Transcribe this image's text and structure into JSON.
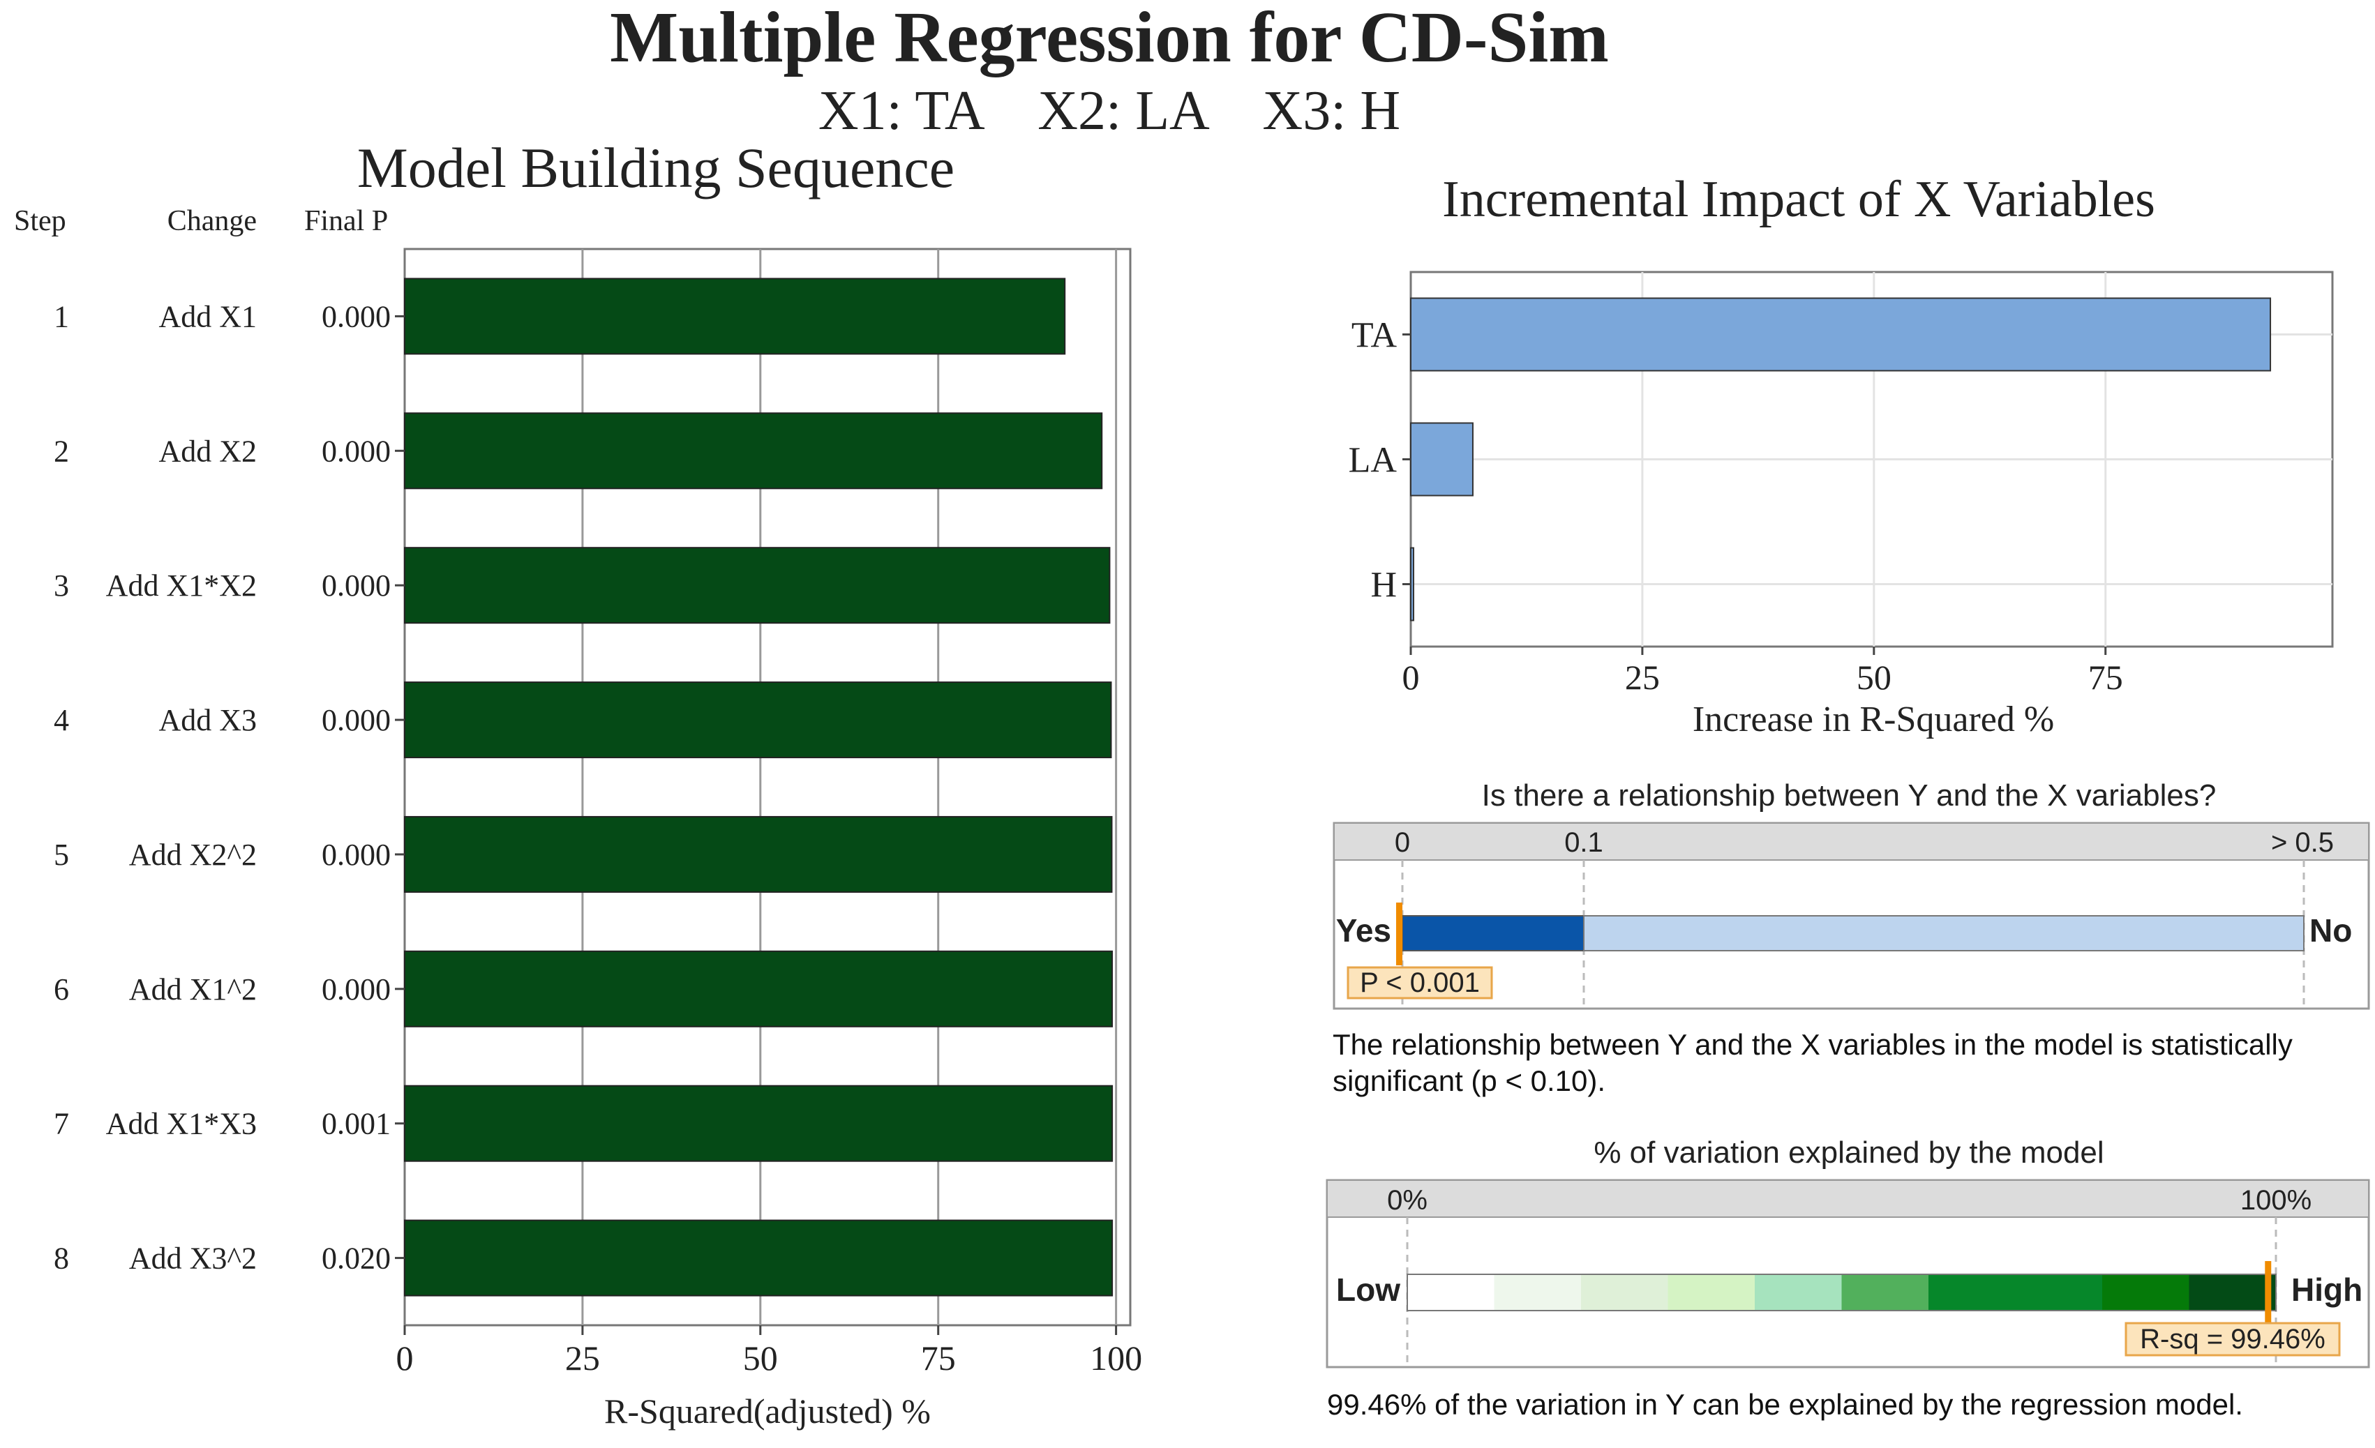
{
  "header": {
    "title": "Multiple Regression for CD-Sim",
    "subtitle": "X1: TA    X2: LA    X3: H"
  },
  "chart_data": [
    {
      "id": "model-building",
      "type": "bar",
      "orientation": "horizontal",
      "title": "Model Building Sequence",
      "column_headers": {
        "step": "Step",
        "change": "Change",
        "p": "Final P"
      },
      "steps": [
        "1",
        "2",
        "3",
        "4",
        "5",
        "6",
        "7",
        "8"
      ],
      "changes": [
        "Add X1",
        "Add X2",
        "Add X1*X2",
        "Add X3",
        "Add X2^2",
        "Add X1^2",
        "Add X1*X3",
        "Add X3^2"
      ],
      "final_p": [
        "0.000",
        "0.000",
        "0.000",
        "0.000",
        "0.000",
        "0.000",
        "0.001",
        "0.020"
      ],
      "values": [
        92.8,
        98.0,
        99.1,
        99.3,
        99.4,
        99.45,
        99.46,
        99.46
      ],
      "xlabel": "R-Squared(adjusted) %",
      "xlim": [
        0,
        102
      ],
      "ticks": [
        "0",
        "25",
        "50",
        "75",
        "100"
      ],
      "tick_values": [
        0,
        25,
        50,
        75,
        100
      ],
      "bar_color": "#054A16",
      "grid": true
    },
    {
      "id": "incremental-impact",
      "type": "bar",
      "orientation": "horizontal",
      "title": "Incremental Impact of X Variables",
      "categories": [
        "TA",
        "LA",
        "H"
      ],
      "values": [
        92.8,
        6.7,
        0.3
      ],
      "xlabel": "Increase in R-Squared %",
      "xlim": [
        0,
        99.5
      ],
      "ticks": [
        "0",
        "25",
        "50",
        "75"
      ],
      "tick_values": [
        0,
        25,
        50,
        75
      ],
      "bar_color": "#7BA7DA",
      "grid": true
    }
  ],
  "relationship": {
    "question": "Is there a relationship between Y and the X variables?",
    "scale_labels": [
      "0",
      "0.1",
      "> 0.5"
    ],
    "yes_label": "Yes",
    "no_label": "No",
    "p_badge": "P < 0.001",
    "p_value": 0.001,
    "colors": {
      "significant": "#0A55A8",
      "not_significant": "#BDD4EE",
      "marker": "#F08C00"
    },
    "conclusion": "The relationship between Y and the X variables in the model is statistically significant (p < 0.10)."
  },
  "variation": {
    "question": "% of variation explained by the model",
    "scale_labels": [
      "0%",
      "100%"
    ],
    "low_label": "Low",
    "high_label": "High",
    "rsq_badge": "R-sq = 99.46%",
    "rsq_value": 99.46,
    "gradient_colors": [
      "#FFFFFF",
      "#EEF7EC",
      "#DFF0D8",
      "#D5F3C4",
      "#A6E3BE",
      "#52B05C",
      "#06872A",
      "#06872A",
      "#057A09",
      "#034B16"
    ],
    "colors": {
      "marker": "#F08C00",
      "badge_fill": "#FCE4BC",
      "badge_border": "#E8A64A"
    },
    "conclusion": "99.46% of the variation in Y can be explained by the regression model."
  }
}
